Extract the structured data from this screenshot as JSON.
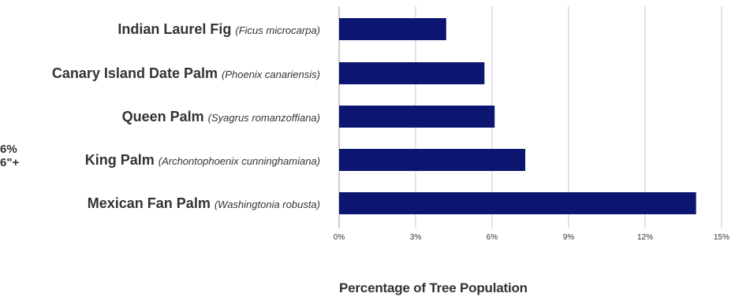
{
  "chart_data": {
    "type": "bar",
    "orientation": "horizontal",
    "categories": [
      {
        "common": "Indian Laurel Fig",
        "scientific": "(Ficus microcarpa)"
      },
      {
        "common": "Canary Island Date Palm",
        "scientific": "(Phoenix canariensis)"
      },
      {
        "common": "Queen Palm",
        "scientific": "(Syagrus romanzoffiana)"
      },
      {
        "common": "King Palm",
        "scientific": "(Archontophoenix cunninghamiana)"
      },
      {
        "common": "Mexican Fan Palm",
        "scientific": "(Washingtonia robusta)"
      }
    ],
    "values": [
      4.2,
      5.7,
      6.1,
      7.3,
      14.0
    ],
    "xticks": [
      "0%",
      "3%",
      "6%",
      "9%",
      "12%",
      "15%"
    ],
    "xlim": [
      0,
      15
    ],
    "xlabel": "Percentage of Tree Population",
    "bar_color": "#0c1570",
    "grid": true,
    "legend": "none"
  },
  "cut_text": {
    "line1": "6%",
    "line2": "6\"+"
  }
}
